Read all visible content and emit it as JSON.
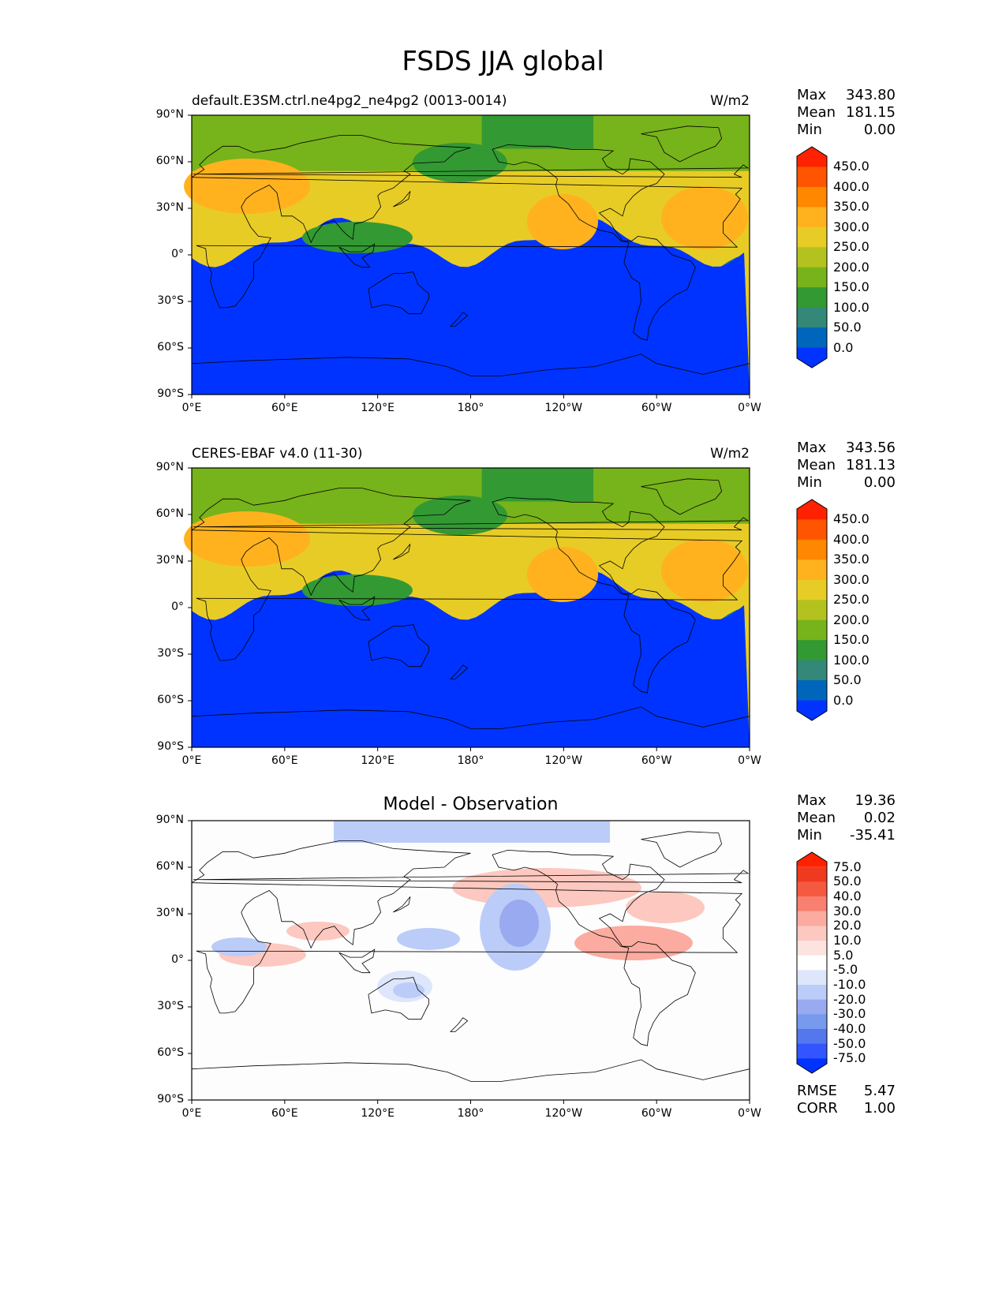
{
  "title": "FSDS JJA global",
  "xticks": [
    "0°E",
    "60°E",
    "120°E",
    "180°",
    "120°W",
    "60°W",
    "0°W"
  ],
  "yticks": [
    "90°N",
    "60°N",
    "30°N",
    "0°",
    "30°S",
    "60°S",
    "90°S"
  ],
  "panels": [
    {
      "name": "test",
      "title_left": "default.E3SM.ctrl.ne4pg2_ne4pg2 (0013-0014)",
      "title_center": "",
      "units": "W/m2",
      "stats": {
        "max_label": "Max",
        "max": "343.80",
        "mean_label": "Mean",
        "mean": "181.15",
        "min_label": "Min",
        "min": "0.00"
      },
      "colorbar": [
        "450.0",
        "400.0",
        "350.0",
        "300.0",
        "250.0",
        "200.0",
        "150.0",
        "100.0",
        "50.0",
        "0.0"
      ]
    },
    {
      "name": "reference",
      "title_left": "CERES-EBAF v4.0 (11-30)",
      "title_center": "",
      "units": "W/m2",
      "stats": {
        "max_label": "Max",
        "max": "343.56",
        "mean_label": "Mean",
        "mean": "181.13",
        "min_label": "Min",
        "min": "0.00"
      },
      "colorbar": [
        "450.0",
        "400.0",
        "350.0",
        "300.0",
        "250.0",
        "200.0",
        "150.0",
        "100.0",
        "50.0",
        "0.0"
      ]
    },
    {
      "name": "difference",
      "title_left": "",
      "title_center": "Model - Observation",
      "units": "",
      "stats": {
        "max_label": "Max",
        "max": "19.36",
        "mean_label": "Mean",
        "mean": "0.02",
        "min_label": "Min",
        "min": "-35.41"
      },
      "colorbar": [
        "75.0",
        "50.0",
        "40.0",
        "30.0",
        "20.0",
        "10.0",
        "5.0",
        "-5.0",
        "-10.0",
        "-20.0",
        "-30.0",
        "-40.0",
        "-50.0",
        "-75.0"
      ],
      "metrics": {
        "rmse_label": "RMSE",
        "rmse": "5.47",
        "corr_label": "CORR",
        "corr": "1.00"
      }
    }
  ],
  "colors": {
    "mean_bands": [
      "#0033ff",
      "#0066bb",
      "#338877",
      "#339933",
      "#77b31a",
      "#b3c21e",
      "#e8cc26",
      "#ffb21e",
      "#ff8800",
      "#ff5500",
      "#ff2200"
    ],
    "diff_bands": [
      "#0033ff",
      "#3355ff",
      "#5577ee",
      "#7799ee",
      "#99aaf0",
      "#bbccf8",
      "#dde6fb",
      "#ffffff",
      "#fde3df",
      "#fcc8bf",
      "#fbab9f",
      "#f88070",
      "#f55a40",
      "#f03a20",
      "#ff2200"
    ]
  }
}
